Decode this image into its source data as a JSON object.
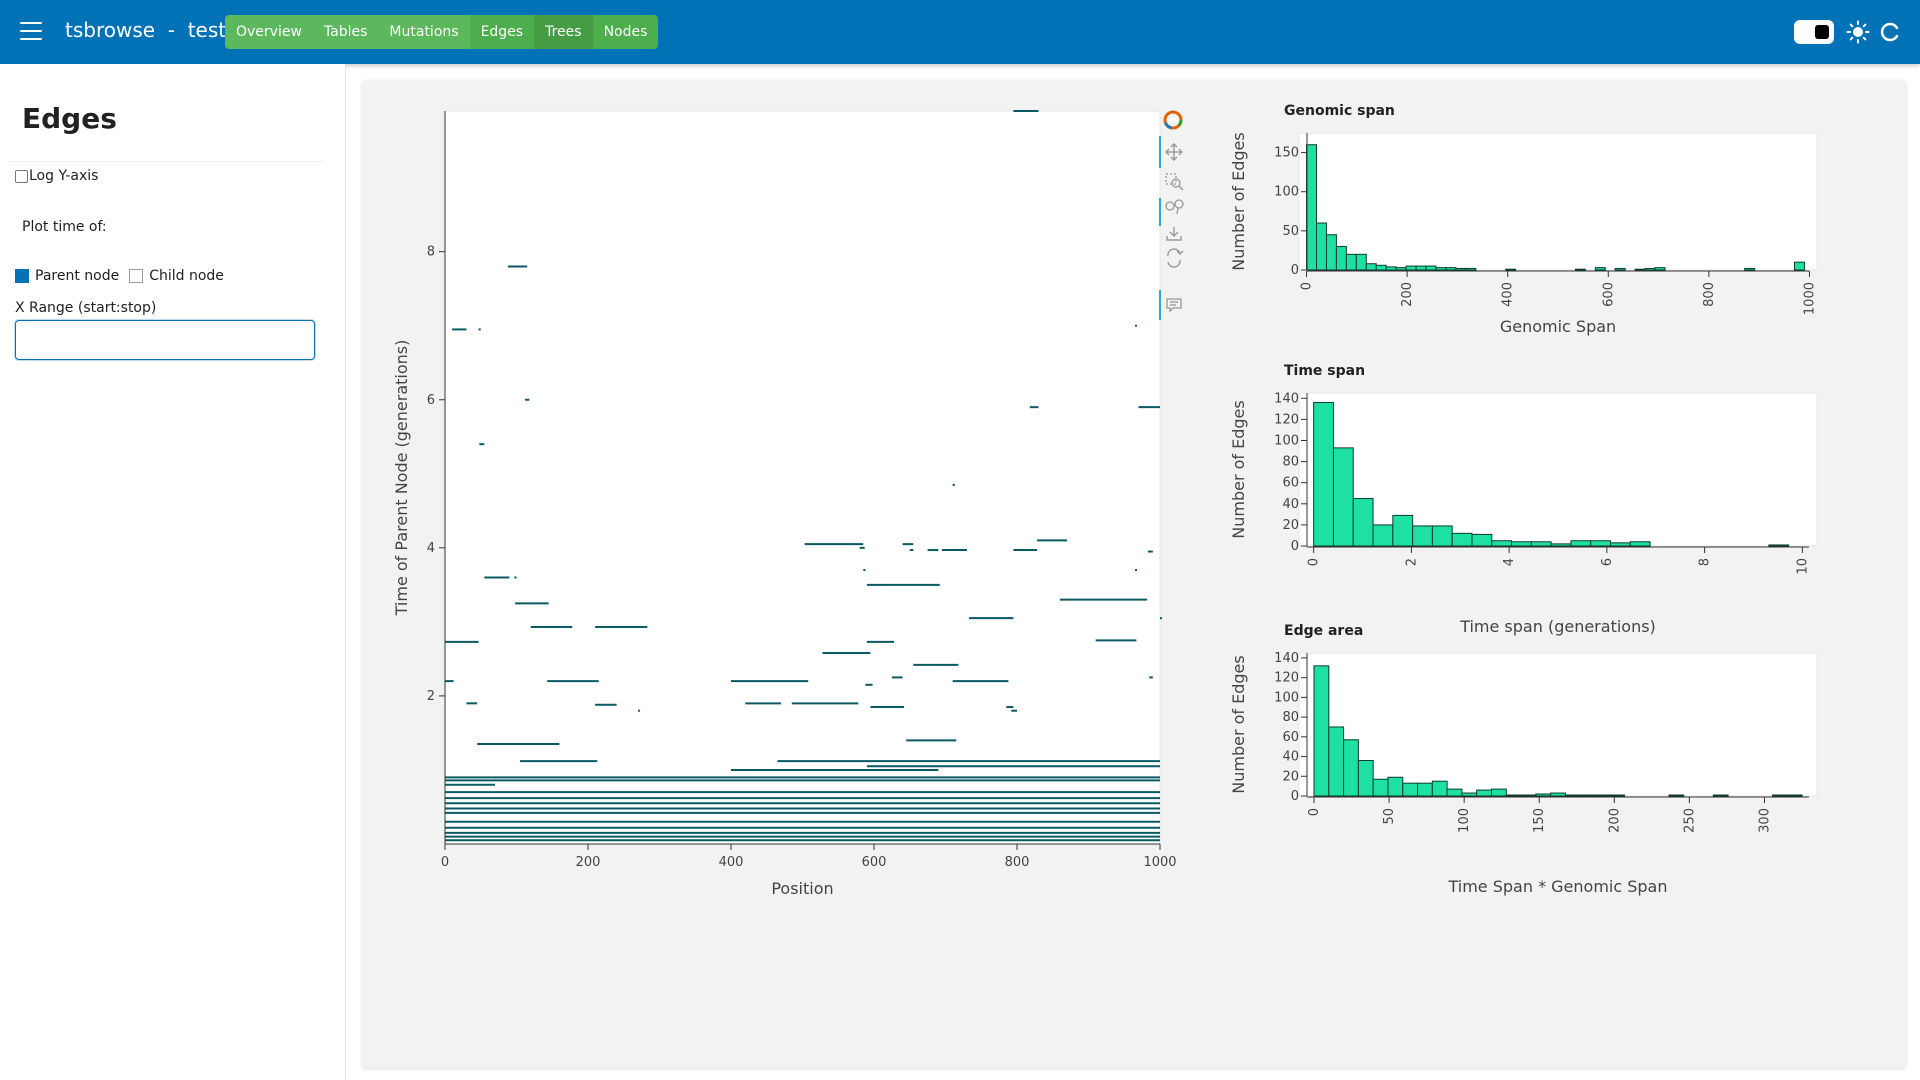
{
  "header": {
    "app_name": "tsbrowse",
    "separator": "-",
    "dataset": "test",
    "nav": [
      "Overview",
      "Tables",
      "Mutations",
      "Edges",
      "Trees",
      "Nodes"
    ]
  },
  "sidebar": {
    "title": "Edges",
    "log_y_label": "Log Y-axis",
    "plot_time_label": "Plot time of:",
    "parent_label": "Parent node",
    "child_label": "Child node",
    "xrange_label": "X Range (start:stop)",
    "xrange_value": ""
  },
  "colors": {
    "header": "#0072b5",
    "nav": "#5cb85c",
    "edge_line": "#0a5a63",
    "hist_fill": "#1ee0a2"
  },
  "chart_data": [
    {
      "type": "scatter",
      "name": "edges-plot",
      "title": "",
      "xlabel": "Position",
      "ylabel": "Time of Parent Node (generations)",
      "xlim": [
        0,
        1000
      ],
      "ylim": [
        0,
        9.9
      ],
      "x_ticks": [
        0,
        200,
        400,
        600,
        800,
        1000
      ],
      "y_ticks": [
        2,
        4,
        6,
        8
      ],
      "segments": [
        [
          795,
          830,
          9.9
        ],
        [
          88,
          115,
          7.8
        ],
        [
          10,
          30,
          6.95
        ],
        [
          47,
          50,
          6.95
        ],
        [
          965,
          967,
          7.0
        ],
        [
          112,
          118,
          6.0
        ],
        [
          48,
          55,
          5.4
        ],
        [
          818,
          830,
          5.9
        ],
        [
          970,
          1000,
          5.9
        ],
        [
          710,
          713,
          4.85
        ],
        [
          503,
          585,
          4.05
        ],
        [
          580,
          587,
          4.0
        ],
        [
          640,
          655,
          4.05
        ],
        [
          650,
          655,
          3.97
        ],
        [
          675,
          690,
          3.97
        ],
        [
          695,
          730,
          3.97
        ],
        [
          795,
          828,
          3.97
        ],
        [
          828,
          870,
          4.1
        ],
        [
          983,
          990,
          3.95
        ],
        [
          965,
          967,
          3.7
        ],
        [
          585,
          588,
          3.7
        ],
        [
          55,
          90,
          3.6
        ],
        [
          97,
          100,
          3.6
        ],
        [
          590,
          692,
          3.5
        ],
        [
          860,
          982,
          3.3
        ],
        [
          98,
          145,
          3.25
        ],
        [
          733,
          795,
          3.05
        ],
        [
          1000,
          1002,
          3.05
        ],
        [
          120,
          178,
          2.93
        ],
        [
          210,
          283,
          2.93
        ],
        [
          0,
          47,
          2.73
        ],
        [
          590,
          628,
          2.73
        ],
        [
          910,
          967,
          2.75
        ],
        [
          528,
          595,
          2.58
        ],
        [
          655,
          718,
          2.42
        ],
        [
          0,
          12,
          2.2
        ],
        [
          143,
          215,
          2.2
        ],
        [
          400,
          508,
          2.2
        ],
        [
          588,
          598,
          2.15
        ],
        [
          625,
          640,
          2.25
        ],
        [
          710,
          788,
          2.2
        ],
        [
          985,
          990,
          2.25
        ],
        [
          30,
          45,
          1.9
        ],
        [
          210,
          240,
          1.88
        ],
        [
          420,
          470,
          1.9
        ],
        [
          485,
          578,
          1.9
        ],
        [
          595,
          642,
          1.85
        ],
        [
          785,
          795,
          1.85
        ],
        [
          792,
          800,
          1.8
        ],
        [
          270,
          272,
          1.8
        ],
        [
          645,
          715,
          1.4
        ],
        [
          45,
          160,
          1.35
        ],
        [
          105,
          213,
          1.12
        ],
        [
          465,
          1000,
          1.12
        ],
        [
          400,
          690,
          1.0
        ],
        [
          590,
          1000,
          1.05
        ],
        [
          0,
          1000,
          0.9
        ],
        [
          0,
          1000,
          0.86
        ],
        [
          0,
          70,
          0.8
        ],
        [
          0,
          1000,
          0.7
        ],
        [
          0,
          1000,
          0.62
        ],
        [
          0,
          1000,
          0.55
        ],
        [
          0,
          1000,
          0.48
        ],
        [
          0,
          1000,
          0.42
        ],
        [
          0,
          1000,
          0.3
        ],
        [
          0,
          1000,
          0.22
        ],
        [
          0,
          1000,
          0.15
        ],
        [
          0,
          1000,
          0.1
        ],
        [
          0,
          1000,
          0.05
        ]
      ]
    },
    {
      "type": "bar",
      "name": "genomic-span-hist",
      "title": "Genomic span",
      "xlabel": "Genomic Span",
      "ylabel": "Number of Edges",
      "xlim": [
        -15,
        1015
      ],
      "ylim": [
        0,
        175
      ],
      "x_ticks": [
        0,
        200,
        400,
        600,
        800,
        1000
      ],
      "y_ticks": [
        0,
        50,
        100,
        150
      ],
      "bin_width": 19.8,
      "bins": [
        0,
        19.8,
        39.6,
        59.4,
        79.2,
        99,
        118.8,
        138.6,
        158.4,
        178.2,
        198,
        217.8,
        237.6,
        257.4,
        277.2,
        297,
        316.8,
        396,
        534.6,
        574.2,
        613.8,
        653.4,
        673.2,
        693,
        871.2,
        970.2
      ],
      "values": [
        160,
        60,
        45,
        30,
        20,
        20,
        8,
        6,
        4,
        3,
        5,
        5,
        5,
        3,
        3,
        2,
        2,
        1,
        1,
        3,
        2,
        1,
        2,
        3,
        2,
        10
      ]
    },
    {
      "type": "bar",
      "name": "time-span-hist",
      "title": "Time span",
      "xlabel": "Time span (generations)",
      "ylabel": "Number of Edges",
      "xlim": [
        -0.3,
        10.3
      ],
      "ylim": [
        0,
        145
      ],
      "x_ticks": [
        0,
        2,
        4,
        6,
        8,
        10
      ],
      "y_ticks": [
        0,
        20,
        40,
        60,
        80,
        100,
        120,
        140
      ],
      "bin_width": 0.405,
      "bins": [
        0,
        0.405,
        0.81,
        1.215,
        1.62,
        2.025,
        2.43,
        2.835,
        3.24,
        3.645,
        4.05,
        4.455,
        4.86,
        5.265,
        5.67,
        6.075,
        6.48,
        9.315
      ],
      "values": [
        136,
        93,
        45,
        20,
        29,
        19,
        19,
        12,
        11,
        5,
        4,
        4,
        2,
        5,
        5,
        3,
        4,
        1
      ]
    },
    {
      "type": "bar",
      "name": "edge-area-hist",
      "title": "Edge area",
      "xlabel": "Time Span * Genomic Span",
      "ylabel": "Number of Edges",
      "xlim": [
        -10,
        335
      ],
      "ylim": [
        0,
        145
      ],
      "x_ticks": [
        0,
        50,
        100,
        150,
        200,
        250,
        300
      ],
      "y_ticks": [
        0,
        20,
        40,
        60,
        80,
        100,
        120,
        140
      ],
      "bin_width": 9.85,
      "bins": [
        0,
        9.85,
        19.7,
        29.55,
        39.4,
        49.25,
        59.1,
        68.95,
        78.8,
        88.65,
        98.5,
        108.35,
        118.2,
        128.05,
        137.9,
        147.75,
        157.6,
        167.45,
        177.3,
        187.15,
        197,
        236.4,
        265.95,
        305.35,
        315.2
      ],
      "values": [
        132,
        70,
        57,
        36,
        17,
        19,
        13,
        13,
        15,
        7,
        3,
        6,
        7,
        1,
        1,
        2,
        3,
        1,
        1,
        1,
        1,
        1,
        1,
        1,
        1
      ]
    }
  ]
}
